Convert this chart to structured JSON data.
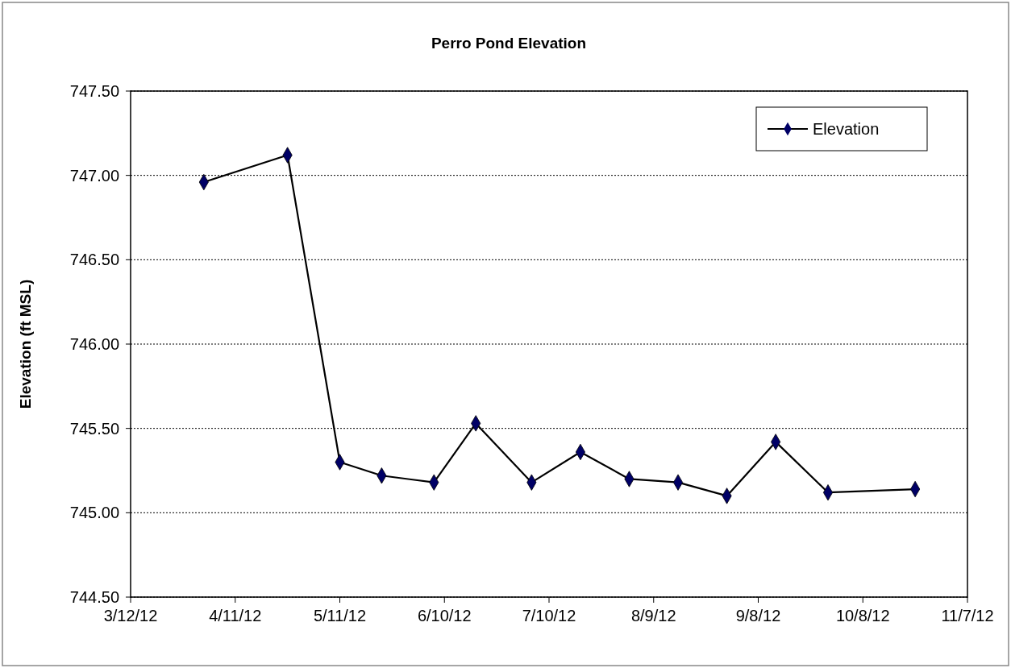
{
  "chart_data": {
    "type": "line",
    "title": "Perro Pond Elevation",
    "ylabel": "Elevation  (ft MSL)",
    "x": [
      "2012-04-02",
      "2012-04-26",
      "2012-05-11",
      "2012-05-23",
      "2012-06-07",
      "2012-06-19",
      "2012-07-05",
      "2012-07-19",
      "2012-08-02",
      "2012-08-16",
      "2012-08-30",
      "2012-09-13",
      "2012-09-28",
      "2012-10-23"
    ],
    "series": [
      {
        "name": "Elevation",
        "color": "#000066",
        "values": [
          746.96,
          747.12,
          745.3,
          745.22,
          745.18,
          745.53,
          745.18,
          745.36,
          745.2,
          745.18,
          745.1,
          745.42,
          745.12,
          745.14
        ]
      }
    ],
    "xlim": [
      "2012-03-12",
      "2012-11-07"
    ],
    "xticks": [
      {
        "value": "2012-03-12",
        "label": "3/12/12"
      },
      {
        "value": "2012-04-11",
        "label": "4/11/12"
      },
      {
        "value": "2012-05-11",
        "label": "5/11/12"
      },
      {
        "value": "2012-06-10",
        "label": "6/10/12"
      },
      {
        "value": "2012-07-10",
        "label": "7/10/12"
      },
      {
        "value": "2012-08-09",
        "label": "8/9/12"
      },
      {
        "value": "2012-09-08",
        "label": "9/8/12"
      },
      {
        "value": "2012-10-08",
        "label": "10/8/12"
      },
      {
        "value": "2012-11-07",
        "label": "11/7/12"
      }
    ],
    "ylim": [
      744.5,
      747.5
    ],
    "yticks": [
      {
        "value": 744.5,
        "label": "744.50"
      },
      {
        "value": 745,
        "label": "745.00"
      },
      {
        "value": 745.5,
        "label": "745.50"
      },
      {
        "value": 746,
        "label": "746.00"
      },
      {
        "value": 746.5,
        "label": "746.50"
      },
      {
        "value": 747,
        "label": "747.00"
      },
      {
        "value": 747.5,
        "label": "747.50"
      }
    ],
    "grid": "y",
    "legend": "top right",
    "marker": "diamond",
    "line_style": "solid"
  }
}
